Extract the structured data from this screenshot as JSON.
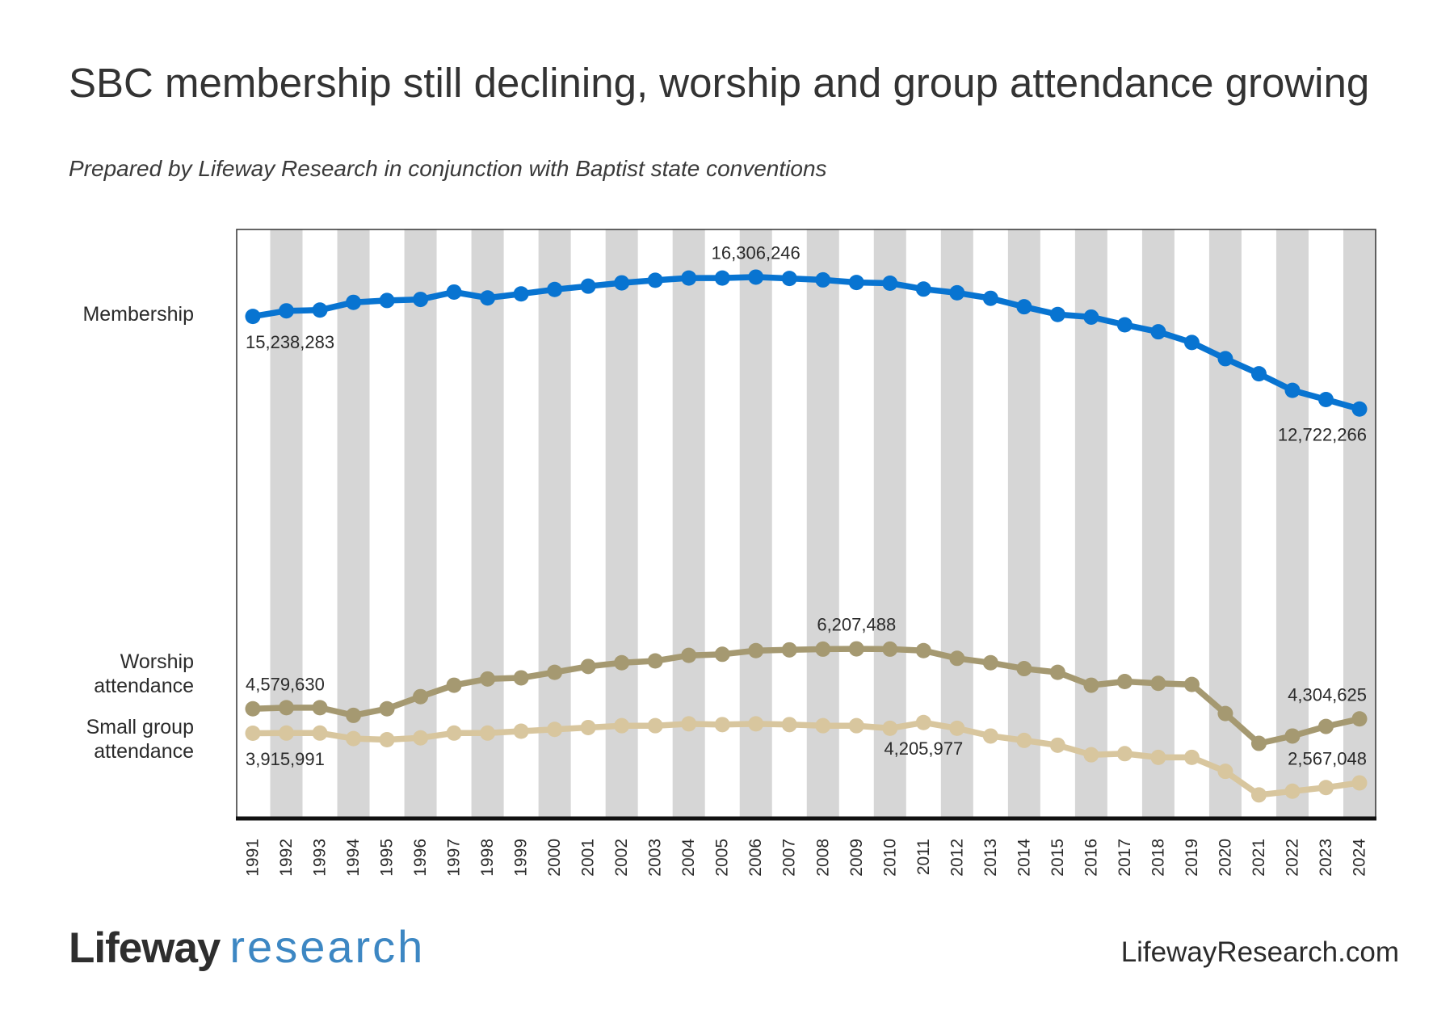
{
  "title": "SBC membership still declining, worship and group attendance growing",
  "subtitle": "Prepared by Lifeway Research in conjunction with Baptist state conventions",
  "colors": {
    "stripe": "#d6d6d6",
    "frame": "#333333",
    "axis": "#111111",
    "logo_research": "#3d87c3"
  },
  "chart_data": {
    "type": "line",
    "title": "SBC membership still declining, worship and group attendance growing",
    "xlabel": "",
    "ylabel": "",
    "grid": false,
    "legend": "left",
    "column_shading": "even years",
    "ylim": [
      1600000,
      17600000
    ],
    "x": [
      1991,
      1992,
      1993,
      1994,
      1995,
      1996,
      1997,
      1998,
      1999,
      2000,
      2001,
      2002,
      2003,
      2004,
      2005,
      2006,
      2007,
      2008,
      2009,
      2010,
      2011,
      2012,
      2013,
      2014,
      2015,
      2016,
      2017,
      2018,
      2019,
      2020,
      2021,
      2022,
      2023,
      2024
    ],
    "series": [
      {
        "name": "Membership",
        "color": "#0874d1",
        "values": [
          15238283,
          15390000,
          15410000,
          15620000,
          15670000,
          15700000,
          15900000,
          15740000,
          15850000,
          15970000,
          16060000,
          16150000,
          16220000,
          16280000,
          16280000,
          16306246,
          16270000,
          16230000,
          16160000,
          16140000,
          15980000,
          15880000,
          15730000,
          15500000,
          15290000,
          15220000,
          15010000,
          14820000,
          14530000,
          14090000,
          13680000,
          13230000,
          12980000,
          12722266
        ],
        "labels": [
          {
            "x": 1991,
            "text": "15,238,283",
            "placement": "below",
            "align": "start"
          },
          {
            "x": 2006,
            "text": "16,306,246",
            "placement": "above",
            "align": "middle"
          },
          {
            "x": 2024,
            "text": "12,722,266",
            "placement": "below",
            "align": "end"
          }
        ]
      },
      {
        "name": "Worship attendance",
        "color": "#a59971",
        "values": [
          4579630,
          4610000,
          4610000,
          4400000,
          4580000,
          4910000,
          5220000,
          5390000,
          5420000,
          5570000,
          5730000,
          5830000,
          5880000,
          6030000,
          6060000,
          6160000,
          6180000,
          6200000,
          6207488,
          6200000,
          6160000,
          5950000,
          5830000,
          5670000,
          5570000,
          5220000,
          5320000,
          5270000,
          5240000,
          4450000,
          3640000,
          3840000,
          4100000,
          4304625
        ],
        "labels": [
          {
            "x": 1991,
            "text": "4,579,630",
            "placement": "above",
            "align": "start"
          },
          {
            "x": 2009,
            "text": "6,207,488",
            "placement": "above",
            "align": "middle"
          },
          {
            "x": 2024,
            "text": "4,304,625",
            "placement": "above",
            "align": "end"
          }
        ]
      },
      {
        "name": "Small group attendance",
        "color": "#d8c69e",
        "values": [
          3915991,
          3920000,
          3920000,
          3770000,
          3740000,
          3790000,
          3920000,
          3920000,
          3970000,
          4020000,
          4070000,
          4120000,
          4120000,
          4170000,
          4150000,
          4170000,
          4150000,
          4120000,
          4120000,
          4050000,
          4205977,
          4050000,
          3840000,
          3720000,
          3590000,
          3330000,
          3360000,
          3260000,
          3260000,
          2880000,
          2240000,
          2340000,
          2440000,
          2567048
        ],
        "labels": [
          {
            "x": 1991,
            "text": "3,915,991",
            "placement": "below",
            "align": "start"
          },
          {
            "x": 2011,
            "text": "4,205,977",
            "placement": "below",
            "align": "middle"
          },
          {
            "x": 2024,
            "text": "2,567,048",
            "placement": "above",
            "align": "end"
          }
        ]
      }
    ]
  },
  "footer": {
    "logo_primary": "Lifeway",
    "logo_secondary": "research",
    "website": "LifewayResearch.com"
  }
}
